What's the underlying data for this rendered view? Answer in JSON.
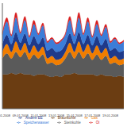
{
  "chart_data": {
    "type": "area",
    "stacked": true,
    "grid": true,
    "legend": "bottom",
    "tick_labels": "x",
    "categories": [
      "07.01.2008",
      null,
      null,
      null,
      "09.01.2008",
      null,
      null,
      null,
      "11.01.2008",
      null,
      null,
      null,
      "13.01.2008",
      null,
      null,
      null,
      "15.01.2008",
      null,
      null,
      null,
      "17.01.2008",
      null,
      null,
      null,
      "19.01.2008",
      null,
      null,
      null
    ],
    "ylim": [
      0,
      80
    ],
    "yticks": [
      0,
      20,
      40,
      60,
      80
    ],
    "series": [
      {
        "name": "Braunkohle",
        "color": "#6b3d12",
        "values": [
          26,
          26,
          27,
          26,
          27,
          26,
          26,
          25,
          26,
          26,
          25,
          24,
          25,
          24,
          26,
          26,
          27,
          26,
          26,
          26,
          26,
          25,
          26,
          25,
          25,
          24,
          25,
          24
        ]
      },
      {
        "name": "Steinkohle",
        "color": "#5a5a5a",
        "values": [
          12,
          16,
          11,
          17,
          12,
          17,
          11,
          16,
          12,
          15,
          9,
          11,
          8,
          10,
          12,
          17,
          11,
          17,
          12,
          16,
          11,
          16,
          11,
          15,
          9,
          11,
          8,
          10
        ]
      },
      {
        "name": "Gas",
        "color": "#f07d00",
        "values": [
          5,
          7,
          5,
          8,
          5,
          7,
          5,
          7,
          5,
          6,
          4,
          5,
          4,
          4,
          5,
          7,
          5,
          8,
          5,
          7,
          5,
          7,
          5,
          6,
          4,
          5,
          4,
          4
        ]
      },
      {
        "name": "Andere EE",
        "color": "#1f3a8a",
        "values": [
          6,
          7,
          6,
          7,
          6,
          7,
          6,
          7,
          6,
          7,
          6,
          6,
          6,
          6,
          6,
          7,
          6,
          7,
          6,
          7,
          6,
          7,
          6,
          7,
          6,
          6,
          6,
          6
        ]
      },
      {
        "name": "Speicherwasser",
        "color": "#3b7dd8",
        "values": [
          7,
          10,
          6,
          11,
          7,
          10,
          6,
          9,
          7,
          9,
          6,
          7,
          6,
          7,
          7,
          10,
          6,
          11,
          7,
          10,
          6,
          9,
          7,
          9,
          6,
          7,
          6,
          7
        ]
      },
      {
        "name": "Öl",
        "color": "#d81e1e",
        "values": [
          1,
          3,
          1,
          4,
          1,
          3,
          1,
          3,
          1,
          2,
          1,
          1,
          1,
          1,
          1,
          3,
          1,
          4,
          1,
          3,
          1,
          3,
          1,
          2,
          1,
          1,
          1,
          1
        ]
      }
    ]
  }
}
